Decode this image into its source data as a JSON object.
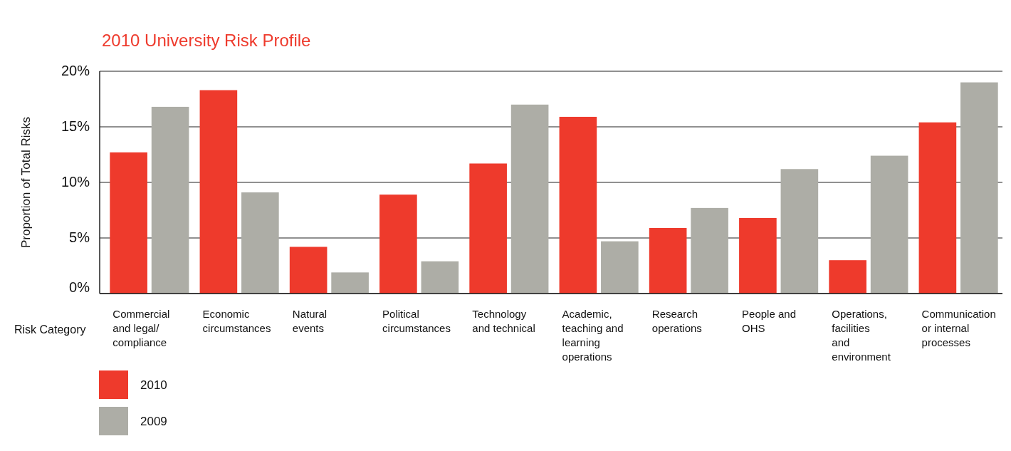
{
  "chart_data": {
    "type": "bar",
    "title": "2010 University Risk Profile",
    "xlabel": "Risk Category",
    "ylabel": "Proportion of Total Risks",
    "categories": [
      "Commercial and legal/compliance",
      "Economic circumstances",
      "Natural events",
      "Political circumstances",
      "Technology and technical",
      "Academic, teaching and learning operations",
      "Research operations",
      "People and OHS",
      "Operations, facilities and environment",
      "Communication or internal processes"
    ],
    "series": [
      {
        "name": "2010",
        "color": "#ee3a2c",
        "values": [
          12.7,
          18.3,
          4.2,
          8.9,
          11.7,
          15.9,
          5.9,
          6.8,
          3.0,
          15.4
        ]
      },
      {
        "name": "2009",
        "color": "#adada6",
        "values": [
          16.8,
          9.1,
          1.9,
          2.9,
          17.0,
          4.7,
          7.7,
          11.2,
          12.4,
          19.0
        ]
      }
    ],
    "ylim": [
      0,
      20
    ],
    "yticks": [
      {
        "value": 0,
        "label": "0%"
      },
      {
        "value": 5,
        "label": "5%"
      },
      {
        "value": 10,
        "label": "10%"
      },
      {
        "value": 15,
        "label": "15%"
      },
      {
        "value": 20,
        "label": "20%"
      }
    ],
    "grid": "y",
    "legend": "bottom left"
  }
}
